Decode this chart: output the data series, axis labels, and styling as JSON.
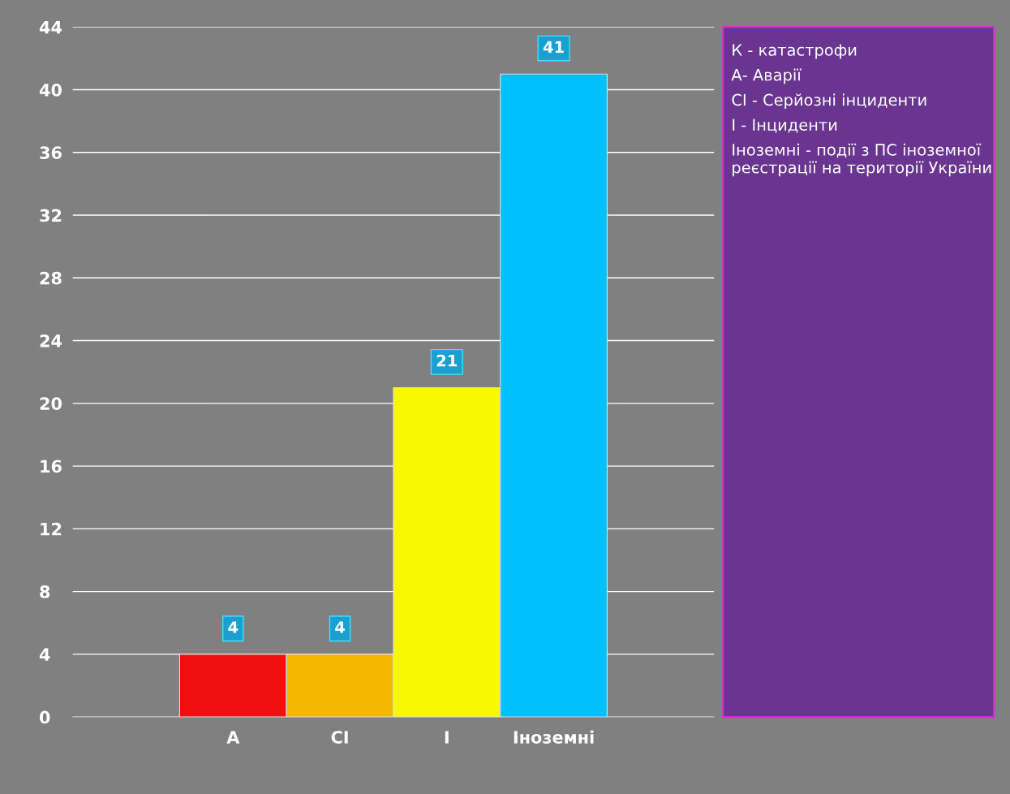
{
  "chart_data": {
    "type": "bar",
    "categories": [
      null,
      "А",
      "СІ",
      "І",
      "Іноземні",
      null
    ],
    "values": [
      null,
      4,
      4,
      21,
      41,
      null
    ],
    "colors": [
      "#808080",
      "#f01010",
      "#f5b800",
      "#f8f800",
      "#00bfff",
      "#808080"
    ],
    "ylim": [
      0,
      44
    ],
    "yticks": [
      0,
      4,
      8,
      12,
      16,
      20,
      24,
      28,
      32,
      36,
      40,
      44
    ],
    "grid": "y",
    "data_labels": true,
    "annotations": [
      "К - катастрофи",
      "А- Аварії",
      "СІ - Серйозні інциденти",
      "І - Інциденти",
      "Іноземні - події з ПС іноземної реєстрації на території України"
    ]
  }
}
